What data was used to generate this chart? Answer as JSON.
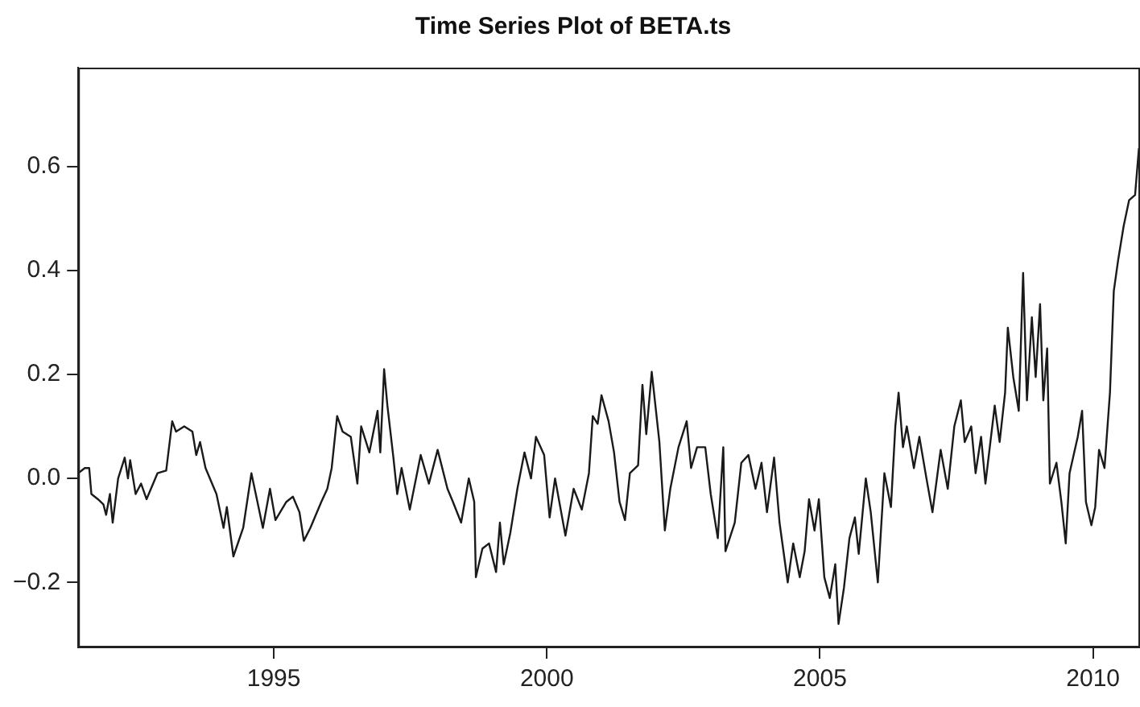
{
  "chart_data": {
    "type": "line",
    "title": "Time Series Plot of BETA.ts",
    "xlim": [
      1991.42,
      2010.86
    ],
    "xticks": [
      1995,
      2000,
      2005,
      2010
    ],
    "ylim": [
      -0.325,
      0.79
    ],
    "yticks": [
      {
        "value": -0.2,
        "label": "−0.2"
      },
      {
        "value": 0,
        "label": "0.0"
      },
      {
        "value": 0.2,
        "label": "0.2"
      },
      {
        "value": 0.4,
        "label": "0.4"
      },
      {
        "value": 0.6,
        "label": "0.6"
      }
    ],
    "grid": false,
    "legend": false,
    "marker": "none",
    "line_style": "solid",
    "series": [
      {
        "color": "#1a1a1a",
        "x": [
          1991.42,
          1991.54,
          1991.62,
          1991.66,
          1991.78,
          1991.88,
          1991.93,
          1992.0,
          1992.05,
          1992.15,
          1992.27,
          1992.33,
          1992.37,
          1992.47,
          1992.57,
          1992.67,
          1992.87,
          1993.03,
          1993.14,
          1993.21,
          1993.36,
          1993.51,
          1993.58,
          1993.65,
          1993.75,
          1993.95,
          1994.08,
          1994.14,
          1994.26,
          1994.44,
          1994.59,
          1994.67,
          1994.8,
          1994.93,
          1995.03,
          1995.23,
          1995.35,
          1995.47,
          1995.55,
          1995.67,
          1995.87,
          1995.98,
          1996.06,
          1996.16,
          1996.26,
          1996.41,
          1996.53,
          1996.6,
          1996.75,
          1996.9,
          1996.95,
          1997.02,
          1997.08,
          1997.19,
          1997.26,
          1997.34,
          1997.49,
          1997.69,
          1997.84,
          1998.0,
          1998.18,
          1998.28,
          1998.43,
          1998.57,
          1998.67,
          1998.7,
          1998.82,
          1998.94,
          1999.07,
          1999.14,
          1999.21,
          1999.33,
          1999.46,
          1999.59,
          1999.71,
          1999.8,
          1999.95,
          2000.05,
          2000.15,
          2000.34,
          2000.49,
          2000.64,
          2000.77,
          2000.84,
          2000.93,
          2001.0,
          2001.13,
          2001.23,
          2001.33,
          2001.43,
          2001.52,
          2001.67,
          2001.75,
          2001.82,
          2001.92,
          2002.06,
          2002.16,
          2002.26,
          2002.41,
          2002.56,
          2002.64,
          2002.75,
          2002.9,
          2003.0,
          2003.13,
          2003.23,
          2003.27,
          2003.44,
          2003.56,
          2003.69,
          2003.82,
          2003.93,
          2004.03,
          2004.16,
          2004.26,
          2004.41,
          2004.51,
          2004.63,
          2004.72,
          2004.8,
          2004.9,
          2004.98,
          2005.08,
          2005.18,
          2005.28,
          2005.34,
          2005.44,
          2005.54,
          2005.64,
          2005.71,
          2005.84,
          2005.93,
          2006.06,
          2006.18,
          2006.3,
          2006.38,
          2006.44,
          2006.52,
          2006.59,
          2006.72,
          2006.82,
          2006.95,
          2007.06,
          2007.21,
          2007.34,
          2007.46,
          2007.58,
          2007.65,
          2007.77,
          2007.85,
          2007.95,
          2008.03,
          2008.2,
          2008.29,
          2008.39,
          2008.44,
          2008.54,
          2008.64,
          2008.72,
          2008.79,
          2008.88,
          2008.95,
          2009.03,
          2009.09,
          2009.16,
          2009.21,
          2009.33,
          2009.42,
          2009.5,
          2009.57,
          2009.72,
          2009.8,
          2009.87,
          2009.97,
          2010.04,
          2010.11,
          2010.21,
          2010.31,
          2010.38,
          2010.46,
          2010.56,
          2010.66,
          2010.77,
          2010.84
        ],
        "values": [
          0.01,
          0.02,
          0.02,
          -0.03,
          -0.04,
          -0.05,
          -0.07,
          -0.03,
          -0.085,
          0.0,
          0.04,
          0.0,
          0.035,
          -0.03,
          -0.01,
          -0.04,
          0.01,
          0.015,
          0.11,
          0.09,
          0.1,
          0.09,
          0.045,
          0.07,
          0.02,
          -0.03,
          -0.095,
          -0.055,
          -0.15,
          -0.095,
          0.01,
          -0.03,
          -0.095,
          -0.02,
          -0.08,
          -0.045,
          -0.035,
          -0.065,
          -0.12,
          -0.095,
          -0.045,
          -0.02,
          0.02,
          0.12,
          0.09,
          0.08,
          -0.01,
          0.1,
          0.05,
          0.13,
          0.05,
          0.21,
          0.14,
          0.04,
          -0.03,
          0.02,
          -0.06,
          0.045,
          -0.01,
          0.055,
          -0.02,
          -0.045,
          -0.085,
          0.0,
          -0.045,
          -0.19,
          -0.135,
          -0.125,
          -0.18,
          -0.085,
          -0.165,
          -0.105,
          -0.02,
          0.05,
          0.0,
          0.08,
          0.045,
          -0.075,
          0.0,
          -0.11,
          -0.02,
          -0.06,
          0.01,
          0.12,
          0.105,
          0.16,
          0.11,
          0.05,
          -0.045,
          -0.08,
          0.01,
          0.025,
          0.18,
          0.085,
          0.205,
          0.07,
          -0.1,
          -0.02,
          0.06,
          0.11,
          0.02,
          0.06,
          0.06,
          -0.03,
          -0.115,
          0.06,
          -0.14,
          -0.085,
          0.03,
          0.045,
          -0.02,
          0.03,
          -0.065,
          0.04,
          -0.085,
          -0.2,
          -0.125,
          -0.19,
          -0.14,
          -0.04,
          -0.1,
          -0.04,
          -0.19,
          -0.23,
          -0.165,
          -0.28,
          -0.21,
          -0.115,
          -0.075,
          -0.145,
          0.0,
          -0.065,
          -0.2,
          0.01,
          -0.055,
          0.1,
          0.165,
          0.06,
          0.1,
          0.02,
          0.08,
          0.0,
          -0.065,
          0.055,
          -0.02,
          0.1,
          0.15,
          0.07,
          0.1,
          0.01,
          0.08,
          -0.01,
          0.14,
          0.07,
          0.165,
          0.29,
          0.195,
          0.13,
          0.395,
          0.15,
          0.31,
          0.195,
          0.335,
          0.15,
          0.25,
          -0.01,
          0.03,
          -0.045,
          -0.125,
          0.01,
          0.08,
          0.13,
          -0.045,
          -0.09,
          -0.055,
          0.055,
          0.02,
          0.165,
          0.36,
          0.42,
          0.485,
          0.535,
          0.545,
          0.635
        ]
      }
    ]
  }
}
